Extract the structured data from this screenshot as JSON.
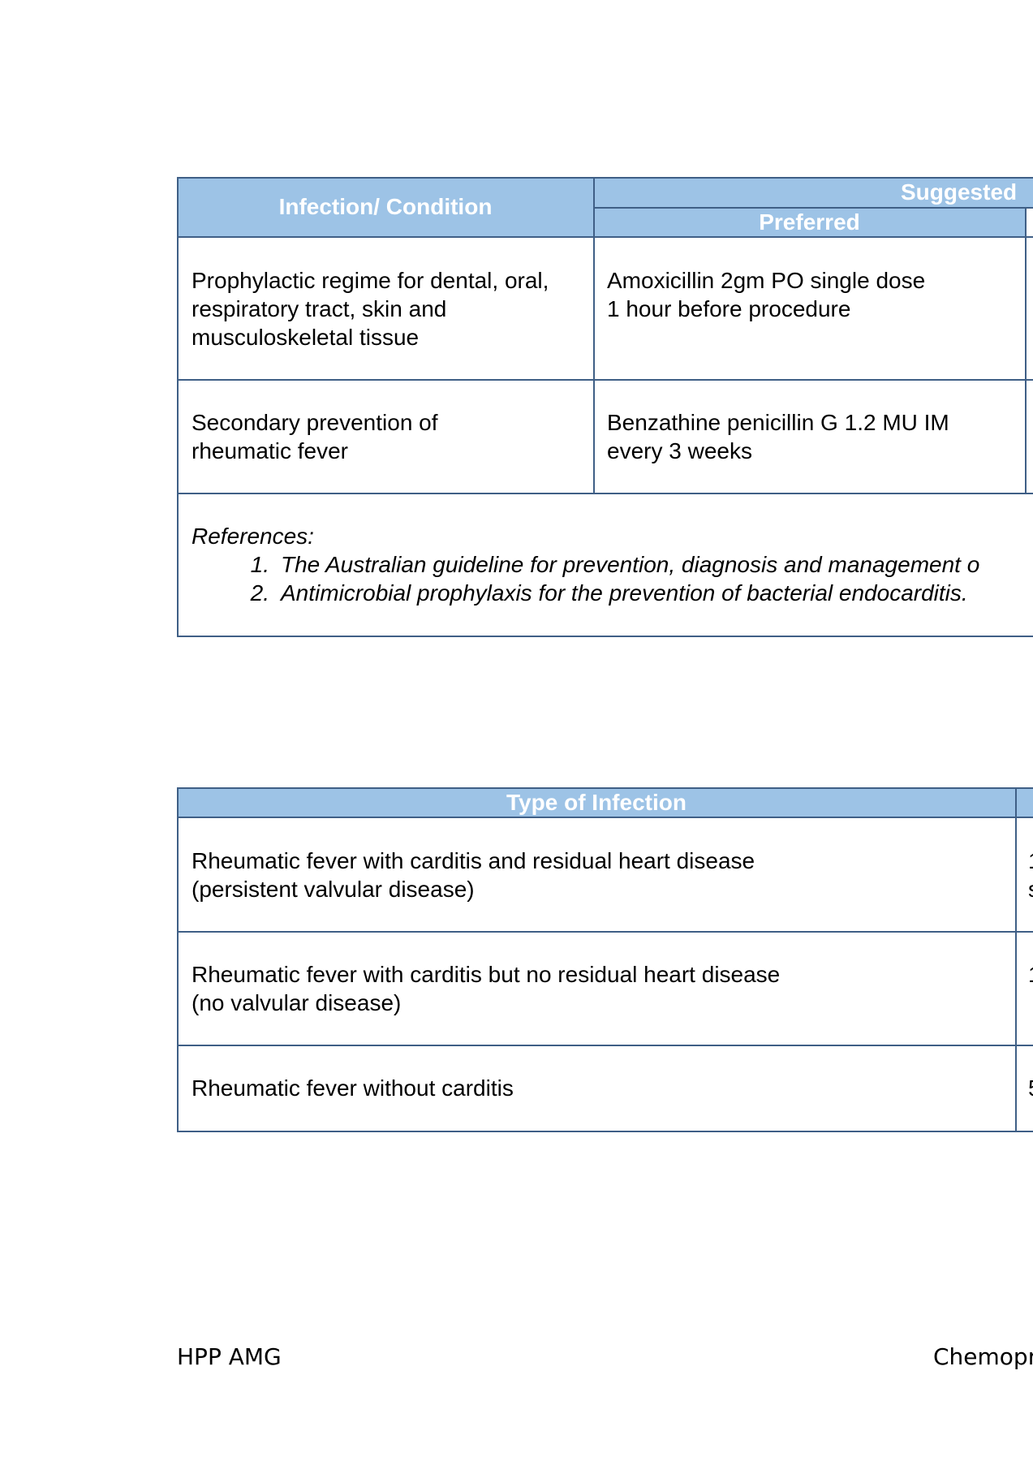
{
  "table1": {
    "header": {
      "condition": "Infection/ Condition",
      "suggested": "Suggested",
      "preferred": "Preferred"
    },
    "rows": [
      {
        "condition": [
          "Prophylactic regime for dental, oral,",
          "respiratory tract, skin and",
          "musculoskeletal tissue"
        ],
        "preferred": [
          "Amoxicillin 2gm PO single dose",
          "1 hour before procedure"
        ]
      },
      {
        "condition": [
          "Secondary prevention of",
          "rheumatic fever"
        ],
        "preferred": [
          "Benzathine penicillin G 1.2 MU IM",
          "every 3 weeks"
        ]
      }
    ],
    "references": {
      "label": "References:",
      "items": [
        {
          "num": "1.",
          "text": "The Australian guideline for prevention, diagnosis and management o"
        },
        {
          "num": "2.",
          "text": "Antimicrobial prophylaxis for the prevention of bacterial endocarditis."
        }
      ]
    }
  },
  "table2": {
    "header": {
      "type": "Type of Infection"
    },
    "rows": [
      {
        "type": [
          "Rheumatic fever with carditis and residual heart disease",
          "(persistent valvular disease)"
        ],
        "edge": [
          "1",
          "s"
        ]
      },
      {
        "type": [
          "Rheumatic fever with carditis but no residual heart disease",
          "(no valvular disease)"
        ],
        "edge": [
          "1"
        ]
      },
      {
        "type": [
          "Rheumatic fever without carditis"
        ],
        "edge": [
          "5"
        ]
      }
    ]
  },
  "footer": {
    "left": "HPP AMG",
    "right": "Chemopr"
  },
  "colors": {
    "header_bg": "#9dc3e6",
    "border": "#3f5f86"
  }
}
